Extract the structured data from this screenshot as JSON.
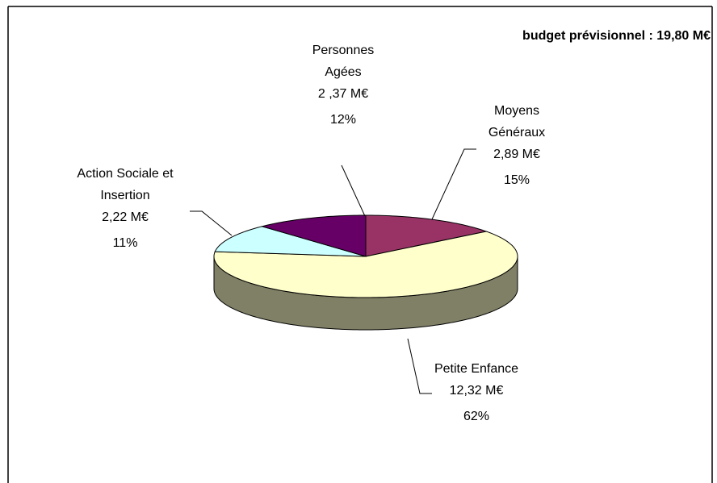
{
  "chart_data": {
    "type": "pie",
    "title": "budget prévisionnel : 19,80 M€",
    "categories": [
      "Moyens Généraux",
      "Petite Enfance",
      "Action Sociale et Insertion",
      "Personnes Agées"
    ],
    "values": [
      2.89,
      12.32,
      2.22,
      2.37
    ],
    "value_labels": [
      "2,89 M€",
      "12,32 M€",
      "2,22 M€",
      "2 ,37 M€"
    ],
    "percent_labels": [
      "15%",
      "62%",
      "11%",
      "12%"
    ],
    "colors": [
      "#993366",
      "#ffffcc",
      "#ccffff",
      "#660066"
    ]
  }
}
